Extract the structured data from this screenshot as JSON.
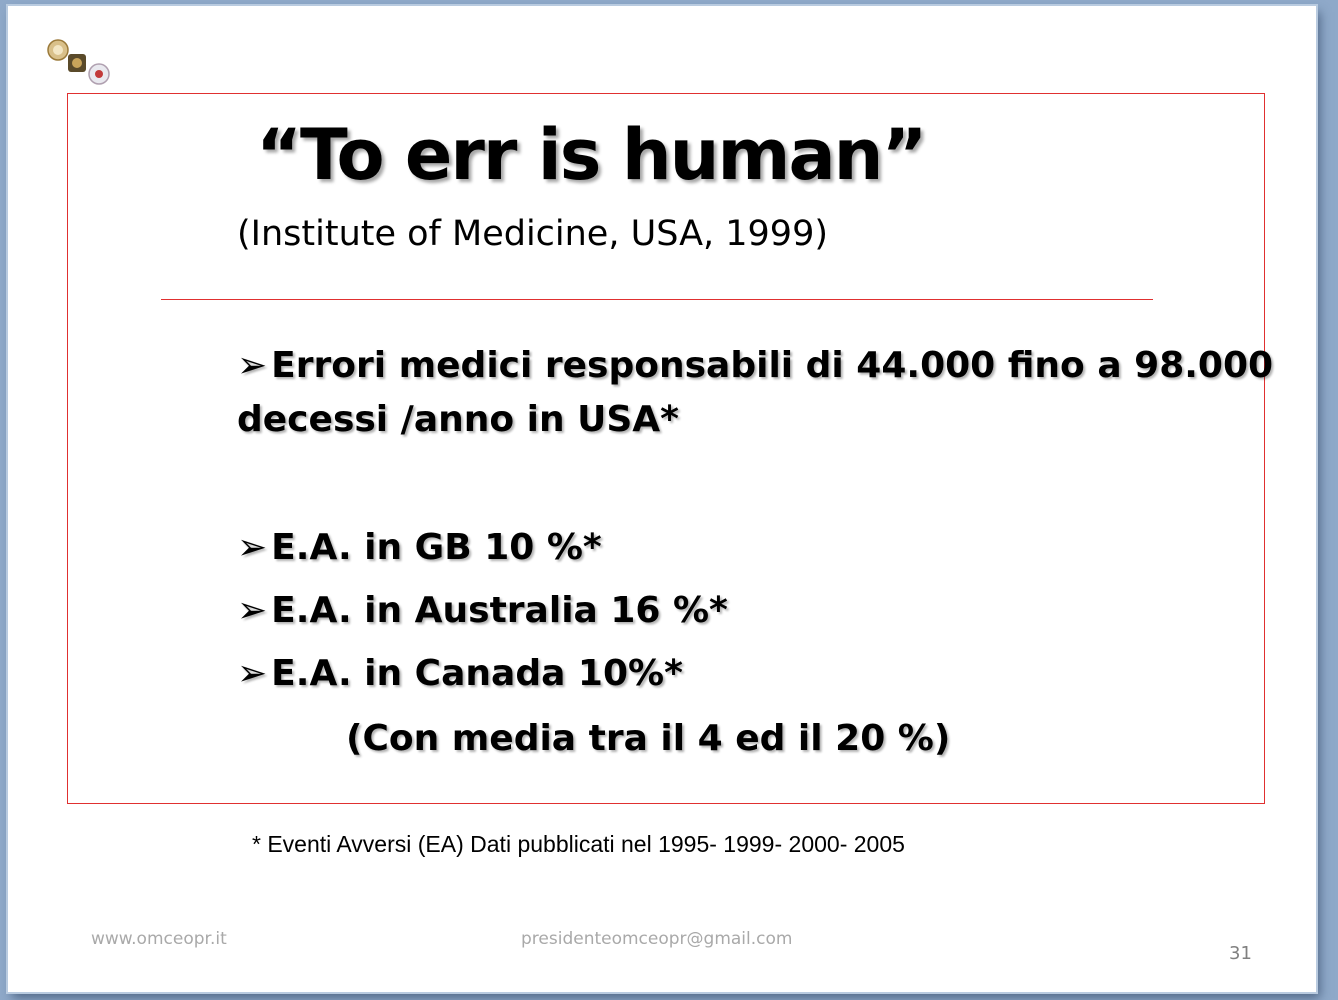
{
  "slide": {
    "title": "“To err is human”",
    "subtitle": "(Institute of Medicine, USA, 1999)",
    "bullet_symbol": "➢",
    "bullets": [
      {
        "line1": "Errori medici  responsabili  di 44.000 fino a 98.000",
        "line2": "decessi /anno in USA*"
      },
      {
        "text": "E.A. in GB 10 %*"
      },
      {
        "text": "E.A. in Australia 16 %*"
      },
      {
        "text": "E.A. in Canada  10%*"
      }
    ],
    "range_note": "(Con media tra il 4 ed il 20 %)",
    "footnote": "*  Eventi Avversi  (EA) Dati pubblicati  nel 1995- 1999- 2000- 2005",
    "footer_left": "www.omceopr.it",
    "footer_center": "presidenteomceopr@gmail.com",
    "page_number": "31"
  },
  "colors": {
    "frame_border": "#e03030",
    "background": "#8fa9c9",
    "footer_text": "#a9a9a9"
  }
}
